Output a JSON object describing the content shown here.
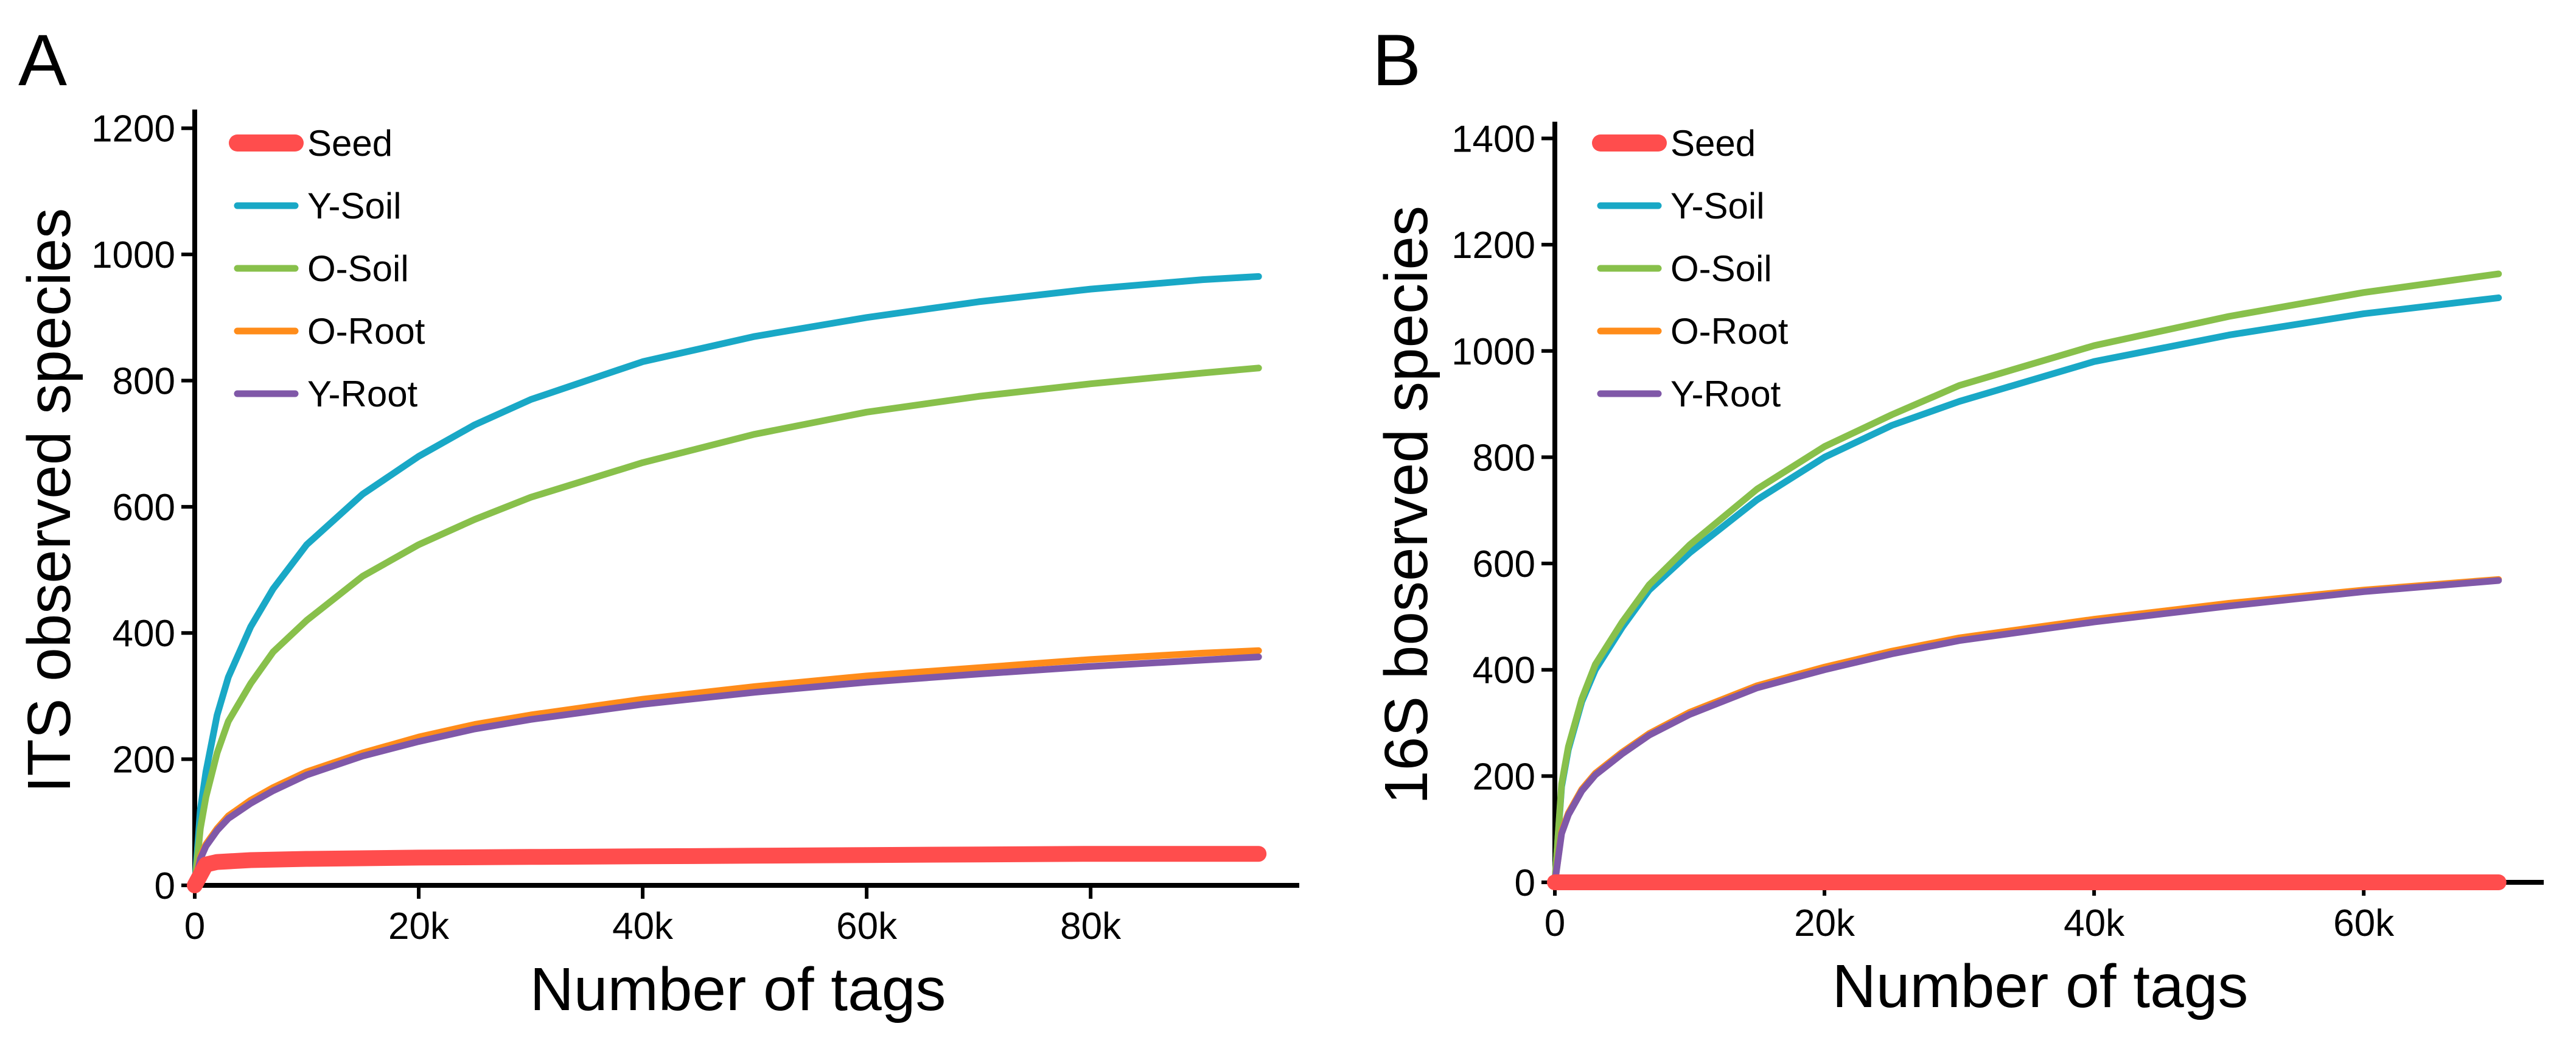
{
  "panels": [
    {
      "letter": "A",
      "chart_data": {
        "type": "line",
        "title": "",
        "xlabel": "Number of tags",
        "ylabel": "ITS observed species",
        "xlim": [
          0,
          97000
        ],
        "ylim": [
          0,
          1220
        ],
        "xticks": [
          0,
          20000,
          40000,
          60000,
          80000
        ],
        "xtick_labels": [
          "0",
          "20k",
          "40k",
          "60k",
          "80k"
        ],
        "yticks": [
          0,
          200,
          400,
          600,
          800,
          1000,
          1200
        ],
        "ytick_labels": [
          "0",
          "200",
          "400",
          "600",
          "800",
          "1000",
          "1200"
        ],
        "grid": false,
        "legend": "top-left",
        "series": [
          {
            "name": "Seed",
            "color": "#ff4d4d",
            "width": "thick",
            "x": [
              0,
              1000,
              2000,
              5000,
              10000,
              20000,
              30000,
              40000,
              50000,
              60000,
              70000,
              80000,
              95000
            ],
            "y": [
              0,
              33,
              37,
              40,
              42,
              44,
              45,
              46,
              47,
              48,
              49,
              50,
              50
            ]
          },
          {
            "name": "Y-Soil",
            "color": "#19a8c6",
            "width": "normal",
            "x": [
              0,
              500,
              1000,
              2000,
              3000,
              5000,
              7000,
              10000,
              15000,
              20000,
              25000,
              30000,
              40000,
              50000,
              60000,
              70000,
              80000,
              90000,
              95000
            ],
            "y": [
              0,
              120,
              180,
              270,
              330,
              410,
              470,
              540,
              620,
              680,
              730,
              770,
              830,
              870,
              900,
              925,
              945,
              960,
              965
            ]
          },
          {
            "name": "O-Soil",
            "color": "#88c04b",
            "width": "normal",
            "x": [
              0,
              500,
              1000,
              2000,
              3000,
              5000,
              7000,
              10000,
              15000,
              20000,
              25000,
              30000,
              40000,
              50000,
              60000,
              70000,
              80000,
              90000,
              95000
            ],
            "y": [
              0,
              90,
              140,
              210,
              260,
              320,
              370,
              420,
              490,
              540,
              580,
              615,
              670,
              715,
              750,
              775,
              795,
              812,
              820
            ]
          },
          {
            "name": "O-Root",
            "color": "#ff8c1a",
            "width": "normal",
            "x": [
              0,
              500,
              1000,
              2000,
              3000,
              5000,
              7000,
              10000,
              15000,
              20000,
              25000,
              30000,
              40000,
              50000,
              60000,
              70000,
              80000,
              90000,
              95000
            ],
            "y": [
              0,
              45,
              65,
              90,
              110,
              135,
              155,
              180,
              210,
              235,
              255,
              270,
              295,
              315,
              332,
              345,
              358,
              368,
              372
            ]
          },
          {
            "name": "Y-Root",
            "color": "#8058a8",
            "width": "normal",
            "x": [
              0,
              500,
              1000,
              2000,
              3000,
              5000,
              7000,
              10000,
              15000,
              20000,
              25000,
              30000,
              40000,
              50000,
              60000,
              70000,
              80000,
              90000,
              95000
            ],
            "y": [
              0,
              42,
              62,
              87,
              106,
              130,
              150,
              175,
              205,
              228,
              248,
              263,
              287,
              306,
              322,
              335,
              347,
              357,
              362
            ]
          }
        ]
      }
    },
    {
      "letter": "B",
      "chart_data": {
        "type": "line",
        "title": "",
        "xlabel": "Number of tags",
        "ylabel": "16S boserved species",
        "xlim": [
          0,
          72000
        ],
        "ylim": [
          0,
          1420
        ],
        "xticks": [
          0,
          20000,
          40000,
          60000
        ],
        "xtick_labels": [
          "0",
          "20k",
          "40k",
          "60k"
        ],
        "yticks": [
          0,
          200,
          400,
          600,
          800,
          1000,
          1200,
          1400
        ],
        "ytick_labels": [
          "0",
          "200",
          "400",
          "600",
          "800",
          "1000",
          "1200",
          "1400"
        ],
        "grid": false,
        "legend": "top-left",
        "series": [
          {
            "name": "Seed",
            "color": "#ff4d4d",
            "width": "thick",
            "x": [
              0,
              70000
            ],
            "y": [
              0,
              0
            ]
          },
          {
            "name": "Y-Soil",
            "color": "#19a8c6",
            "width": "normal",
            "x": [
              0,
              500,
              1000,
              2000,
              3000,
              5000,
              7000,
              10000,
              15000,
              20000,
              25000,
              30000,
              40000,
              50000,
              60000,
              70000
            ],
            "y": [
              0,
              180,
              250,
              340,
              400,
              480,
              550,
              620,
              720,
              800,
              860,
              905,
              980,
              1030,
              1070,
              1100
            ]
          },
          {
            "name": "O-Soil",
            "color": "#88c04b",
            "width": "normal",
            "x": [
              0,
              500,
              1000,
              2000,
              3000,
              5000,
              7000,
              10000,
              15000,
              20000,
              25000,
              30000,
              40000,
              50000,
              60000,
              70000
            ],
            "y": [
              0,
              185,
              255,
              345,
              410,
              490,
              560,
              635,
              740,
              820,
              880,
              935,
              1010,
              1065,
              1110,
              1145
            ]
          },
          {
            "name": "O-Root",
            "color": "#ff8c1a",
            "width": "normal",
            "x": [
              0,
              500,
              1000,
              2000,
              3000,
              5000,
              7000,
              10000,
              15000,
              20000,
              25000,
              30000,
              40000,
              50000,
              60000,
              70000
            ],
            "y": [
              0,
              95,
              130,
              175,
              205,
              245,
              280,
              320,
              370,
              405,
              435,
              460,
              495,
              525,
              550,
              570
            ]
          },
          {
            "name": "Y-Root",
            "color": "#8058a8",
            "width": "normal",
            "x": [
              0,
              500,
              1000,
              2000,
              3000,
              5000,
              7000,
              10000,
              15000,
              20000,
              25000,
              30000,
              40000,
              50000,
              60000,
              70000
            ],
            "y": [
              0,
              92,
              127,
              172,
              202,
              242,
              277,
              316,
              366,
              400,
              430,
              455,
              490,
              520,
              547,
              568
            ]
          }
        ]
      }
    }
  ]
}
